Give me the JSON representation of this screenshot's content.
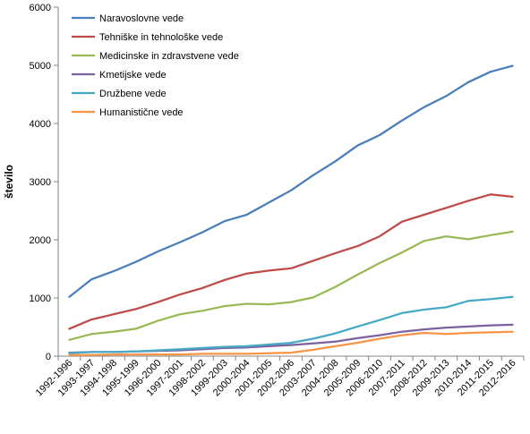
{
  "chart_data": {
    "type": "line",
    "ylabel": "število",
    "xlabel": "",
    "ylim": [
      0,
      6000
    ],
    "yticks": [
      0,
      1000,
      2000,
      3000,
      4000,
      5000,
      6000
    ],
    "grid": false,
    "legend_position": "top-left",
    "categories": [
      "1992-1996",
      "1993-1997",
      "1994-1998",
      "1995-1999",
      "1996-2000",
      "1997-2001",
      "1998-2002",
      "1999-2003",
      "2000-2004",
      "2001-2005",
      "2002-2006",
      "2003-2007",
      "2004-2008",
      "2005-2009",
      "2006-2010",
      "2007-2011",
      "2008-2012",
      "2009-2013",
      "2010-2014",
      "2011-2015",
      "2012-2016"
    ],
    "series": [
      {
        "name": "Naravoslovne vede",
        "color": "#4A7EBB",
        "values": [
          1020,
          1320,
          1460,
          1620,
          1800,
          1960,
          2130,
          2320,
          2430,
          2640,
          2850,
          3110,
          3350,
          3620,
          3800,
          4050,
          4280,
          4470,
          4710,
          4890,
          4990
        ]
      },
      {
        "name": "Tehniške in tehnološke vede",
        "color": "#BE4B48",
        "values": [
          470,
          630,
          720,
          810,
          930,
          1060,
          1170,
          1310,
          1420,
          1470,
          1510,
          1640,
          1770,
          1890,
          2060,
          2310,
          2430,
          2550,
          2670,
          2780,
          2740
        ]
      },
      {
        "name": "Medicinske in zdravstvene vede",
        "color": "#98B954",
        "values": [
          280,
          380,
          420,
          470,
          610,
          720,
          780,
          860,
          900,
          890,
          930,
          1010,
          1190,
          1400,
          1600,
          1780,
          1980,
          2060,
          2010,
          2080,
          2140
        ]
      },
      {
        "name": "Kmetijske vede",
        "color": "#7D60A0",
        "values": [
          60,
          70,
          70,
          80,
          90,
          100,
          120,
          140,
          150,
          170,
          190,
          220,
          250,
          310,
          360,
          420,
          460,
          490,
          510,
          530,
          540
        ]
      },
      {
        "name": "Družbene vede",
        "color": "#46AAC5",
        "values": [
          50,
          70,
          70,
          80,
          100,
          120,
          140,
          160,
          170,
          200,
          230,
          300,
          390,
          510,
          620,
          740,
          800,
          840,
          950,
          980,
          1020
        ]
      },
      {
        "name": "Humanistične vede",
        "color": "#F69546",
        "values": [
          20,
          20,
          30,
          30,
          30,
          30,
          40,
          40,
          40,
          50,
          60,
          110,
          170,
          230,
          300,
          360,
          400,
          380,
          400,
          410,
          420
        ]
      }
    ]
  }
}
